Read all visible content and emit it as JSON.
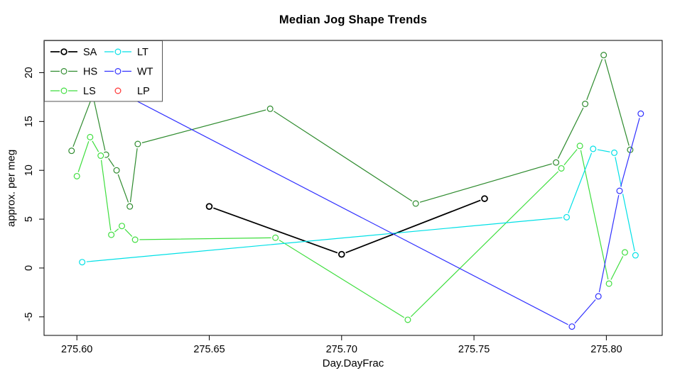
{
  "chart_data": {
    "type": "line",
    "title": "Median Jog Shape Trends",
    "xlabel": "Day.DayFrac",
    "ylabel": "approx. per meg",
    "grid": false,
    "marker": "open-circle",
    "xlim": [
      275.5876,
      275.8211
    ],
    "ylim": [
      -6.9,
      23.3
    ],
    "x_ticks": [
      {
        "label": "275.60",
        "value": 275.6
      },
      {
        "label": "275.65",
        "value": 275.65
      },
      {
        "label": "275.70",
        "value": 275.7
      },
      {
        "label": "275.75",
        "value": 275.75
      },
      {
        "label": "275.80",
        "value": 275.8
      }
    ],
    "y_ticks": [
      {
        "label": "-5",
        "value": -5
      },
      {
        "label": "0",
        "value": 0
      },
      {
        "label": "5",
        "value": 5
      },
      {
        "label": "10",
        "value": 10
      },
      {
        "label": "15",
        "value": 15
      },
      {
        "label": "20",
        "value": 20
      }
    ],
    "legend": {
      "position": "top-left",
      "columns": [
        [
          "SA",
          "HS",
          "LS"
        ],
        [
          "LT",
          "WT",
          "LP"
        ]
      ]
    },
    "series": [
      {
        "name": "SA",
        "color": "#000000",
        "points": [
          [
            275.65,
            6.3
          ],
          [
            275.7,
            1.4
          ],
          [
            275.754,
            7.1
          ]
        ]
      },
      {
        "name": "HS",
        "color": "#2e8b2e",
        "points": [
          [
            275.598,
            12.0
          ],
          [
            275.606,
            17.7
          ],
          [
            275.611,
            11.6
          ],
          [
            275.615,
            10.0
          ],
          [
            275.62,
            6.3
          ],
          [
            275.623,
            12.7
          ],
          [
            275.673,
            16.3
          ],
          [
            275.728,
            6.6
          ],
          [
            275.781,
            10.8
          ],
          [
            275.792,
            16.8
          ],
          [
            275.799,
            21.8
          ],
          [
            275.809,
            12.1
          ]
        ]
      },
      {
        "name": "LS",
        "color": "#3ede3e",
        "points": [
          [
            275.6,
            9.4
          ],
          [
            275.605,
            13.4
          ],
          [
            275.609,
            11.5
          ],
          [
            275.613,
            3.4
          ],
          [
            275.617,
            4.3
          ],
          [
            275.622,
            2.9
          ],
          [
            275.675,
            3.1
          ],
          [
            275.725,
            -5.3
          ],
          [
            275.783,
            10.2
          ],
          [
            275.79,
            12.5
          ],
          [
            275.801,
            -1.6
          ],
          [
            275.807,
            1.6
          ]
        ]
      },
      {
        "name": "LT",
        "color": "#00e0e6",
        "points": [
          [
            275.602,
            0.6
          ],
          [
            275.785,
            5.2
          ],
          [
            275.795,
            12.2
          ],
          [
            275.803,
            11.8
          ],
          [
            275.811,
            1.3
          ]
        ]
      },
      {
        "name": "WT",
        "color": "#3030ff",
        "points": [
          [
            275.592,
            21.4
          ],
          [
            275.787,
            -6.0
          ],
          [
            275.797,
            -2.9
          ],
          [
            275.805,
            7.9
          ],
          [
            275.813,
            15.8
          ]
        ]
      },
      {
        "name": "LP",
        "color": "#ff3030",
        "points": []
      }
    ]
  }
}
